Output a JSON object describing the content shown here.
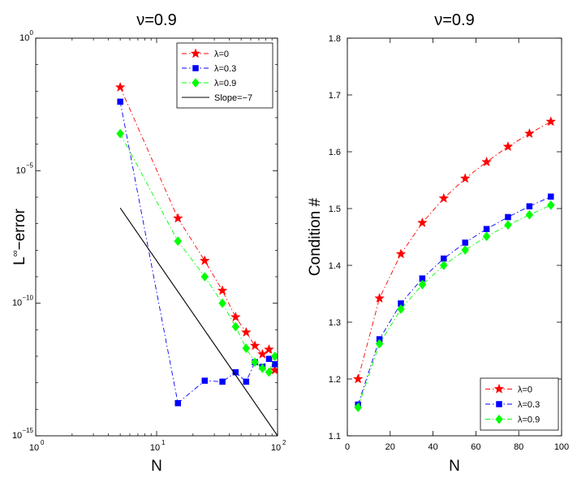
{
  "chart_data": [
    {
      "type": "line",
      "scale": "loglog",
      "title": "ν=0.9",
      "xlabel": "N",
      "ylabel": "L∞−error",
      "ylabel_base": "L",
      "ylabel_sup": "∞",
      "ylabel_rest": "−error",
      "xlim": [
        1,
        100
      ],
      "ylim": [
        1e-15,
        1
      ],
      "xticks": [
        {
          "value": 1,
          "base": "10",
          "exp": "0"
        },
        {
          "value": 10,
          "base": "10",
          "exp": "1"
        },
        {
          "value": 100,
          "base": "10",
          "exp": "2"
        }
      ],
      "yticks": [
        {
          "value": 1e-15,
          "base": "10",
          "exp": "−15"
        },
        {
          "value": 1e-10,
          "base": "10",
          "exp": "−10"
        },
        {
          "value": 1e-05,
          "base": "10",
          "exp": "−5"
        },
        {
          "value": 1,
          "base": "10",
          "exp": "0"
        }
      ],
      "legend_position": "top-right",
      "series": [
        {
          "name": "λ=0",
          "color": "#ff0000",
          "marker": "star",
          "dash": "dashdot",
          "x": [
            5,
            15,
            25,
            35,
            45,
            55,
            65,
            75,
            85,
            95
          ],
          "y": [
            0.014,
            1.6e-07,
            4e-09,
            3e-10,
            3e-11,
            8e-12,
            2.5e-12,
            1.2e-12,
            1.8e-12,
            3e-13
          ]
        },
        {
          "name": "λ=0.3",
          "color": "#0000ff",
          "marker": "square",
          "dash": "dashdot",
          "x": [
            5,
            15,
            25,
            35,
            45,
            55,
            65,
            75,
            85,
            95
          ],
          "y": [
            0.004,
            1.7e-14,
            1.2e-13,
            1.1e-13,
            2.5e-13,
            1.1e-13,
            6e-13,
            4e-13,
            8e-13,
            5e-13
          ]
        },
        {
          "name": "λ=0.9",
          "color": "#00ff00",
          "marker": "diamond",
          "dash": "dashdot",
          "x": [
            5,
            15,
            25,
            35,
            45,
            55,
            65,
            75,
            85,
            95
          ],
          "y": [
            0.00025,
            2.2e-08,
            1e-09,
            1e-10,
            1.3e-11,
            2e-12,
            6e-13,
            3.5e-13,
            2.5e-13,
            1e-12
          ]
        },
        {
          "name": "Slope=−7",
          "color": "#000000",
          "marker": "none",
          "dash": "solid",
          "x": [
            5,
            100
          ],
          "y": [
            3.9e-07,
            1e-15
          ]
        }
      ]
    },
    {
      "type": "line",
      "scale": "linear",
      "title": "ν=0.9",
      "xlabel": "N",
      "ylabel": "Condition #",
      "xlim": [
        0,
        100
      ],
      "ylim": [
        1.1,
        1.8
      ],
      "xticks": [
        {
          "value": 0,
          "label": "0"
        },
        {
          "value": 20,
          "label": "20"
        },
        {
          "value": 40,
          "label": "40"
        },
        {
          "value": 60,
          "label": "60"
        },
        {
          "value": 80,
          "label": "80"
        },
        {
          "value": 100,
          "label": "100"
        }
      ],
      "yticks": [
        {
          "value": 1.1,
          "label": "1.1"
        },
        {
          "value": 1.2,
          "label": "1.2"
        },
        {
          "value": 1.3,
          "label": "1.3"
        },
        {
          "value": 1.4,
          "label": "1.4"
        },
        {
          "value": 1.5,
          "label": "1.5"
        },
        {
          "value": 1.6,
          "label": "1.6"
        },
        {
          "value": 1.7,
          "label": "1.7"
        },
        {
          "value": 1.8,
          "label": "1.8"
        }
      ],
      "legend_position": "bottom-right",
      "series": [
        {
          "name": "λ=0",
          "color": "#ff0000",
          "marker": "star",
          "dash": "dashdot",
          "x": [
            5,
            15,
            25,
            35,
            45,
            55,
            65,
            75,
            85,
            95
          ],
          "y": [
            1.2,
            1.342,
            1.42,
            1.475,
            1.518,
            1.553,
            1.582,
            1.609,
            1.632,
            1.653
          ]
        },
        {
          "name": "λ=0.3",
          "color": "#0000ff",
          "marker": "square",
          "dash": "dashdot",
          "x": [
            5,
            15,
            25,
            35,
            45,
            55,
            65,
            75,
            85,
            95
          ],
          "y": [
            1.155,
            1.27,
            1.333,
            1.377,
            1.412,
            1.44,
            1.464,
            1.485,
            1.504,
            1.521
          ]
        },
        {
          "name": "λ=0.9",
          "color": "#00ff00",
          "marker": "diamond",
          "dash": "dashdot",
          "x": [
            5,
            15,
            25,
            35,
            45,
            55,
            65,
            75,
            85,
            95
          ],
          "y": [
            1.15,
            1.262,
            1.323,
            1.366,
            1.4,
            1.427,
            1.451,
            1.471,
            1.489,
            1.506
          ]
        }
      ]
    }
  ]
}
